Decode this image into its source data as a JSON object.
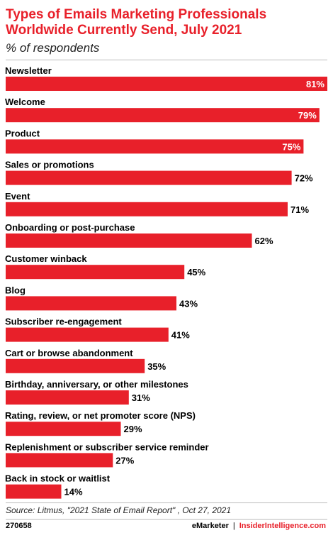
{
  "header": {
    "title": "Types of Emails Marketing Professionals Worldwide Currently Send, July 2021",
    "subtitle": "% of respondents"
  },
  "footer": {
    "source": "Source: Litmus, \"2021 State of Email Report\" , Oct 27, 2021",
    "chart_id": "270658",
    "brand_left": "eMarketer",
    "brand_sep": "|",
    "brand_right": "InsiderIntelligence.com"
  },
  "colors": {
    "bar": "#e8202a",
    "title": "#e8202a"
  },
  "chart_data": {
    "type": "bar",
    "orientation": "horizontal",
    "title": "Types of Emails Marketing Professionals Worldwide Currently Send, July 2021",
    "subtitle": "% of respondents",
    "unit": "%",
    "xlim": [
      0,
      81
    ],
    "grid": false,
    "categories": [
      "Newsletter",
      "Welcome",
      "Product",
      "Sales or promotions",
      "Event",
      "Onboarding or post-purchase",
      "Customer winback",
      "Blog",
      "Subscriber re-engagement",
      "Cart or browse abandonment",
      "Birthday, anniversary, or other milestones",
      "Rating, review, or net promoter score (NPS)",
      "Replenishment or subscriber service reminder",
      "Back in stock or waitlist"
    ],
    "values": [
      81,
      79,
      75,
      72,
      71,
      62,
      45,
      43,
      41,
      35,
      31,
      29,
      27,
      14
    ],
    "value_labels": [
      "81%",
      "79%",
      "75%",
      "72%",
      "71%",
      "62%",
      "45%",
      "43%",
      "41%",
      "35%",
      "31%",
      "29%",
      "27%",
      "14%"
    ]
  }
}
